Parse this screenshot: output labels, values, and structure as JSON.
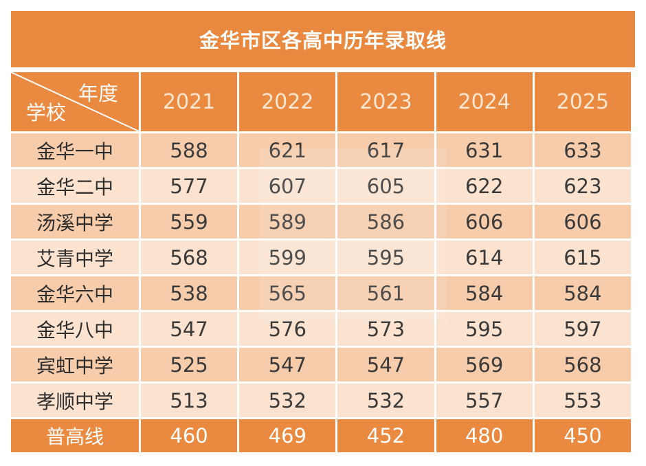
{
  "title": "金华市区各高中历年录取线",
  "header": {
    "corner_top": "年度",
    "corner_bottom": "学校",
    "years": [
      "2021",
      "2022",
      "2023",
      "2024",
      "2025"
    ]
  },
  "rows": [
    {
      "school": "金华一中",
      "scores": [
        "588",
        "621",
        "617",
        "631",
        "633"
      ]
    },
    {
      "school": "金华二中",
      "scores": [
        "577",
        "607",
        "605",
        "622",
        "623"
      ]
    },
    {
      "school": "汤溪中学",
      "scores": [
        "559",
        "589",
        "586",
        "606",
        "606"
      ]
    },
    {
      "school": "艾青中学",
      "scores": [
        "568",
        "599",
        "595",
        "614",
        "615"
      ]
    },
    {
      "school": "金华六中",
      "scores": [
        "538",
        "565",
        "561",
        "584",
        "584"
      ]
    },
    {
      "school": "金华八中",
      "scores": [
        "547",
        "576",
        "573",
        "595",
        "597"
      ]
    },
    {
      "school": "宾虹中学",
      "scores": [
        "525",
        "547",
        "547",
        "569",
        "568"
      ]
    },
    {
      "school": "孝顺中学",
      "scores": [
        "513",
        "532",
        "532",
        "557",
        "553"
      ]
    }
  ],
  "footer": {
    "label": "普高线",
    "scores": [
      "460",
      "469",
      "452",
      "480",
      "450"
    ]
  },
  "colors": {
    "header_orange": "#e8893f",
    "row_dark": "#f6ccab",
    "row_light": "#fbe3d0"
  }
}
